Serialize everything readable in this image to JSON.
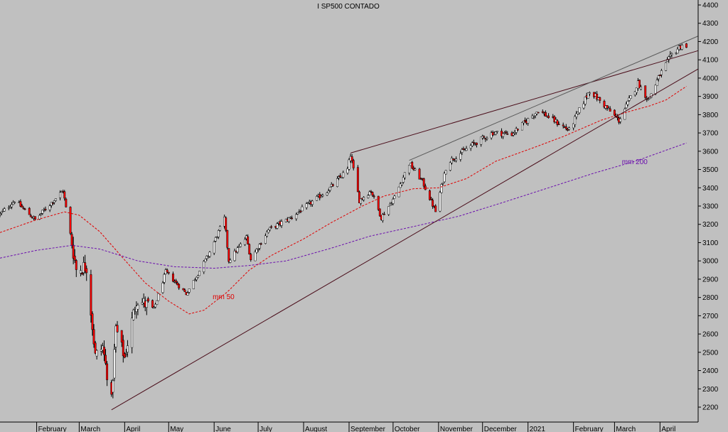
{
  "chart_data": {
    "type": "candlestick",
    "title": "I SP500 CONTADO",
    "y_axis": {
      "side": "right",
      "ticks": [
        2200,
        2300,
        2400,
        2500,
        2600,
        2700,
        2800,
        2900,
        3000,
        3100,
        3200,
        3300,
        3400,
        3500,
        3600,
        3700,
        3800,
        3900,
        4000,
        4100,
        4200,
        4300,
        4400
      ],
      "ylim": [
        2150,
        4430
      ]
    },
    "x_axis": {
      "labels": [
        {
          "label": "February",
          "x": "2020-02-01"
        },
        {
          "label": "March",
          "x": "2020-03-01"
        },
        {
          "label": "April",
          "x": "2020-04-01"
        },
        {
          "label": "May",
          "x": "2020-05-01"
        },
        {
          "label": "June",
          "x": "2020-06-01"
        },
        {
          "label": "July",
          "x": "2020-07-01"
        },
        {
          "label": "August",
          "x": "2020-08-01"
        },
        {
          "label": "September",
          "x": "2020-09-01"
        },
        {
          "label": "October",
          "x": "2020-10-01"
        },
        {
          "label": "November",
          "x": "2020-11-01"
        },
        {
          "label": "December",
          "x": "2020-12-01"
        },
        {
          "label": "2021",
          "x": "2021-01-01"
        },
        {
          "label": "February",
          "x": "2021-02-01"
        },
        {
          "label": "March",
          "x": "2021-03-01"
        },
        {
          "label": "April",
          "x": "2021-04-01"
        }
      ],
      "xlim": [
        "2020-01-07",
        "2021-04-27"
      ]
    },
    "price_path": [
      [
        "2020-01-07",
        3255
      ],
      [
        "2020-01-17",
        3330
      ],
      [
        "2020-01-31",
        3225
      ],
      [
        "2020-02-19",
        3386
      ],
      [
        "2020-02-28",
        2954
      ],
      [
        "2020-03-06",
        2972
      ],
      [
        "2020-03-12",
        2480
      ],
      [
        "2020-03-17",
        2529
      ],
      [
        "2020-03-23",
        2237
      ],
      [
        "2020-03-26",
        2630
      ],
      [
        "2020-04-01",
        2470
      ],
      [
        "2020-04-09",
        2790
      ],
      [
        "2020-04-21",
        2737
      ],
      [
        "2020-04-29",
        2940
      ],
      [
        "2020-05-13",
        2820
      ],
      [
        "2020-05-28",
        3030
      ],
      [
        "2020-06-08",
        3232
      ],
      [
        "2020-06-11",
        3002
      ],
      [
        "2020-06-23",
        3130
      ],
      [
        "2020-06-26",
        3009
      ],
      [
        "2020-07-08",
        3170
      ],
      [
        "2020-07-23",
        3235
      ],
      [
        "2020-08-04",
        3306
      ],
      [
        "2020-08-18",
        3390
      ],
      [
        "2020-08-31",
        3500
      ],
      [
        "2020-09-02",
        3580
      ],
      [
        "2020-09-08",
        3331
      ],
      [
        "2020-09-16",
        3385
      ],
      [
        "2020-09-23",
        3237
      ],
      [
        "2020-10-02",
        3348
      ],
      [
        "2020-10-12",
        3534
      ],
      [
        "2020-10-21",
        3435
      ],
      [
        "2020-10-30",
        3270
      ],
      [
        "2020-11-06",
        3509
      ],
      [
        "2020-11-09",
        3550
      ],
      [
        "2020-11-24",
        3635
      ],
      [
        "2020-12-08",
        3702
      ],
      [
        "2020-12-21",
        3694
      ],
      [
        "2021-01-08",
        3824
      ],
      [
        "2021-01-29",
        3714
      ],
      [
        "2021-02-12",
        3934
      ],
      [
        "2021-03-04",
        3768
      ],
      [
        "2021-03-17",
        3974
      ],
      [
        "2021-03-24",
        3881
      ],
      [
        "2021-04-01",
        4019
      ],
      [
        "2021-04-09",
        4128
      ],
      [
        "2021-04-16",
        4185
      ],
      [
        "2021-04-19",
        4163
      ]
    ],
    "candle_count": 327,
    "series": [
      {
        "name": "mm 50",
        "color": "#e00000",
        "style": "dashed",
        "points": [
          [
            "2020-01-07",
            3155
          ],
          [
            "2020-02-01",
            3225
          ],
          [
            "2020-02-20",
            3268
          ],
          [
            "2020-03-01",
            3250
          ],
          [
            "2020-03-15",
            3160
          ],
          [
            "2020-04-01",
            3005
          ],
          [
            "2020-04-15",
            2880
          ],
          [
            "2020-05-01",
            2780
          ],
          [
            "2020-05-15",
            2710
          ],
          [
            "2020-05-25",
            2730
          ],
          [
            "2020-06-10",
            2830
          ],
          [
            "2020-06-25",
            2950
          ],
          [
            "2020-07-10",
            3030
          ],
          [
            "2020-08-01",
            3120
          ],
          [
            "2020-08-20",
            3210
          ],
          [
            "2020-09-10",
            3300
          ],
          [
            "2020-09-25",
            3355
          ],
          [
            "2020-10-15",
            3395
          ],
          [
            "2020-11-01",
            3400
          ],
          [
            "2020-11-20",
            3450
          ],
          [
            "2020-12-10",
            3545
          ],
          [
            "2021-01-05",
            3620
          ],
          [
            "2021-01-25",
            3680
          ],
          [
            "2021-02-20",
            3770
          ],
          [
            "2021-03-10",
            3815
          ],
          [
            "2021-03-25",
            3848
          ],
          [
            "2021-04-05",
            3880
          ],
          [
            "2021-04-19",
            3955
          ]
        ]
      },
      {
        "name": "mm 200",
        "color": "#6a0dad",
        "style": "dashed",
        "points": [
          [
            "2020-01-07",
            3015
          ],
          [
            "2020-02-01",
            3058
          ],
          [
            "2020-02-25",
            3085
          ],
          [
            "2020-03-15",
            3065
          ],
          [
            "2020-04-10",
            3000
          ],
          [
            "2020-05-05",
            2968
          ],
          [
            "2020-06-01",
            2960
          ],
          [
            "2020-06-25",
            2975
          ],
          [
            "2020-07-20",
            3000
          ],
          [
            "2020-08-20",
            3070
          ],
          [
            "2020-09-15",
            3135
          ],
          [
            "2020-10-15",
            3188
          ],
          [
            "2020-11-15",
            3245
          ],
          [
            "2020-12-15",
            3320
          ],
          [
            "2021-01-15",
            3400
          ],
          [
            "2021-02-15",
            3480
          ],
          [
            "2021-03-15",
            3545
          ],
          [
            "2021-04-19",
            3645
          ]
        ]
      }
    ],
    "trendlines": [
      {
        "name": "support",
        "from": [
          "2020-03-23",
          2185
        ],
        "to": [
          "2021-04-27",
          4050
        ],
        "color": "#4a0d1a"
      },
      {
        "name": "resistance",
        "from": [
          "2020-09-02",
          3590
        ],
        "to": [
          "2021-04-27",
          4150
        ],
        "color": "#4a0d1a"
      },
      {
        "name": "channel-top",
        "from": [
          "2020-10-12",
          3550
        ],
        "to": [
          "2021-04-27",
          4230
        ],
        "color": "#5a5a5a"
      }
    ],
    "annotations": [
      {
        "text": "mm 50",
        "x": "2020-05-31",
        "y": 2790,
        "color": "#e00000"
      },
      {
        "text": "mm 200",
        "x": "2021-03-06",
        "y": 3530,
        "color": "#6a0dad"
      }
    ],
    "colors": {
      "background": "#c0c0c0",
      "up": "#ffffff",
      "down": "#ff0000",
      "axis": "#000000"
    }
  }
}
